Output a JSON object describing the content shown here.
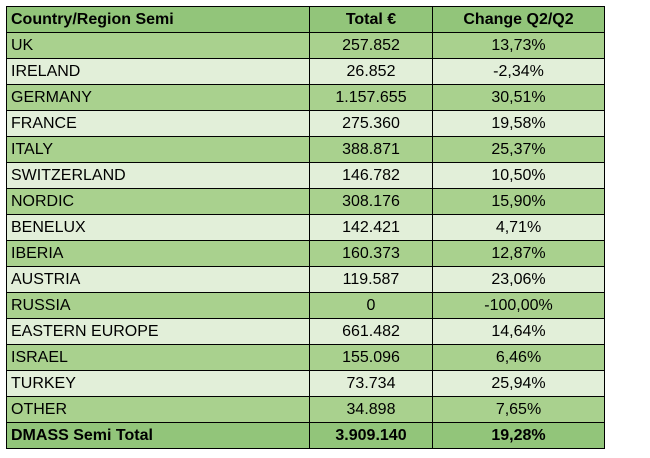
{
  "table": {
    "headers": [
      "Country/Region Semi",
      "Total €",
      "Change Q2/Q2"
    ],
    "rows": [
      {
        "region": "UK",
        "total": "257.852",
        "change": "13,73%"
      },
      {
        "region": "IRELAND",
        "total": "26.852",
        "change": "-2,34%"
      },
      {
        "region": "GERMANY",
        "total": "1.157.655",
        "change": "30,51%"
      },
      {
        "region": "FRANCE",
        "total": "275.360",
        "change": "19,58%"
      },
      {
        "region": "ITALY",
        "total": "388.871",
        "change": "25,37%"
      },
      {
        "region": "SWITZERLAND",
        "total": "146.782",
        "change": "10,50%"
      },
      {
        "region": "NORDIC",
        "total": "308.176",
        "change": "15,90%"
      },
      {
        "region": "BENELUX",
        "total": "142.421",
        "change": "4,71%"
      },
      {
        "region": "IBERIA",
        "total": "160.373",
        "change": "12,87%"
      },
      {
        "region": "AUSTRIA",
        "total": "119.587",
        "change": "23,06%"
      },
      {
        "region": "RUSSIA",
        "total": "0",
        "change": "-100,00%"
      },
      {
        "region": "EASTERN EUROPE",
        "total": "661.482",
        "change": "14,64%"
      },
      {
        "region": "ISRAEL",
        "total": "155.096",
        "change": "6,46%"
      },
      {
        "region": "TURKEY",
        "total": "73.734",
        "change": "25,94%"
      },
      {
        "region": "OTHER",
        "total": "34.898",
        "change": "7,65%"
      }
    ],
    "total": {
      "region": "DMASS Semi Total",
      "total": "3.909.140",
      "change": "19,28%"
    }
  },
  "colors": {
    "header": "#92c57a",
    "row_dark": "#a9d18e",
    "row_light": "#e2efd9",
    "border": "#000000"
  }
}
